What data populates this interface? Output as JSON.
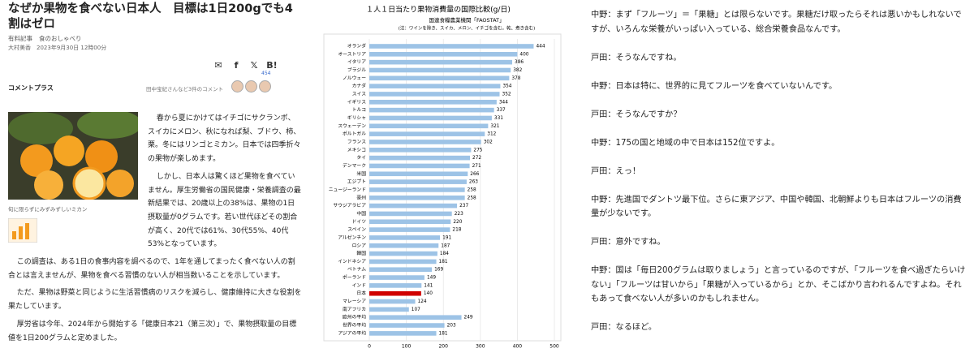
{
  "article": {
    "title": "なぜか果物を食べない日本人　目標は1日200gでも4割はゼロ",
    "tags": [
      "有料記事",
      "食のおしゃべり"
    ],
    "byline": "大村美香　2023年9月30日 12時00分",
    "share_count": "454",
    "comment_label": "コメントプラス",
    "comment_count": "田中宝紀さんなど3件のコメント",
    "caption": "旬に限らずにみずみずしいミカン",
    "paragraphs": [
      "春から夏にかけてはイチゴにサクランボ、スイカにメロン、秋になれば梨、ブドウ、柿、栗。冬にはリンゴとミカン。日本では四季折々の果物が楽しめます。",
      "しかし、日本人は驚くほど果物を食べていません。厚生労働省の国民健康・栄養調査の最新結果では、20歳以上の38%は、果物の1日摂取量が0グラムです。若い世代ほどその割合が高く、20代では61%、30代55%、40代53%となっています。",
      "この調査は、ある1日の食事内容を調べるので、1年を通してまったく食べない人の割合とは言えませんが、果物を食べる習慣のない人が相当数いることを示しています。",
      "ただ、果物は野菜と同じように生活習慣病のリスクを減らし、健康維持に大きな役割を果たしています。",
      "厚労省は今年、2024年から開始する「健康日本21（第三次）」で、果物摂取量の目標値を1日200グラムと定めました。"
    ]
  },
  "chart_data": {
    "type": "hbar",
    "title": "１人１日当たり果物消費量の国際比較(g/日)",
    "subtitle": "国連食糧農業機関「FAOSTAT」",
    "note": "(注：ワインを除き、スイカ、メロン、イチゴを含む。乾、煮き含む)",
    "categories": [
      "オランダ",
      "オーストリア",
      "イタリア",
      "ブラジル",
      "ノルウェー",
      "カナダ",
      "スイス",
      "イギリス",
      "トルコ",
      "ギリシャ",
      "スウェーデン",
      "ポルトガル",
      "フランス",
      "メキシコ",
      "タイ",
      "デンマーク",
      "米国",
      "エジプト",
      "ニュージーランド",
      "豪州",
      "サウジアラビア",
      "中国",
      "ドイツ",
      "スペイン",
      "アルゼンチン",
      "ロシア",
      "韓国",
      "インドネシア",
      "ベトナム",
      "ポーランド",
      "インド",
      "日本",
      "マレーシア",
      "南アフリカ",
      "欧州の平均",
      "世界の平均",
      "アジアの平均"
    ],
    "values": [
      444,
      400,
      386,
      382,
      378,
      354,
      352,
      344,
      337,
      331,
      321,
      312,
      302,
      275,
      272,
      271,
      266,
      263,
      258,
      258,
      237,
      223,
      220,
      218,
      191,
      187,
      184,
      181,
      169,
      149,
      141,
      140,
      124,
      107,
      249,
      203,
      181
    ],
    "color": "#9dc3e6",
    "highlight": {
      "index": 31,
      "color": "#d00000"
    },
    "xlim": [
      0,
      500
    ],
    "xticks": [
      0,
      100,
      200,
      300,
      400,
      500
    ],
    "grid": true
  },
  "dialogue": [
    "中野：まず「フルーツ」＝「果糖」とは限らないです。果糖だけ取ったらそれは悪いかもしれないですが、いろんな栄養がいっぱい入っている、総合栄養食品なんです。",
    "戸田：そうなんですね。",
    "中野：日本は特に、世界的に見てフルーツを食べていないんです。",
    "戸田：そうなんですか？",
    "中野：175の国と地域の中で日本は152位ですよ。",
    "戸田：えっ！",
    "中野：先進国でダントツ最下位。さらに東アジア、中国や韓国、北朝鮮よりも日本はフルーツの消費量が少ないです。",
    "戸田：意外ですね。",
    "中野：国は「毎日200グラムは取りましょう」と言っているのですが、「フルーツを食べ過ぎたらいけない」「フルーツは甘いから」「果糖が入っているから」とか、そこばかり言われるんですよね。それもあって食べない人が多いのかもしれません。",
    "戸田：なるほど。"
  ]
}
